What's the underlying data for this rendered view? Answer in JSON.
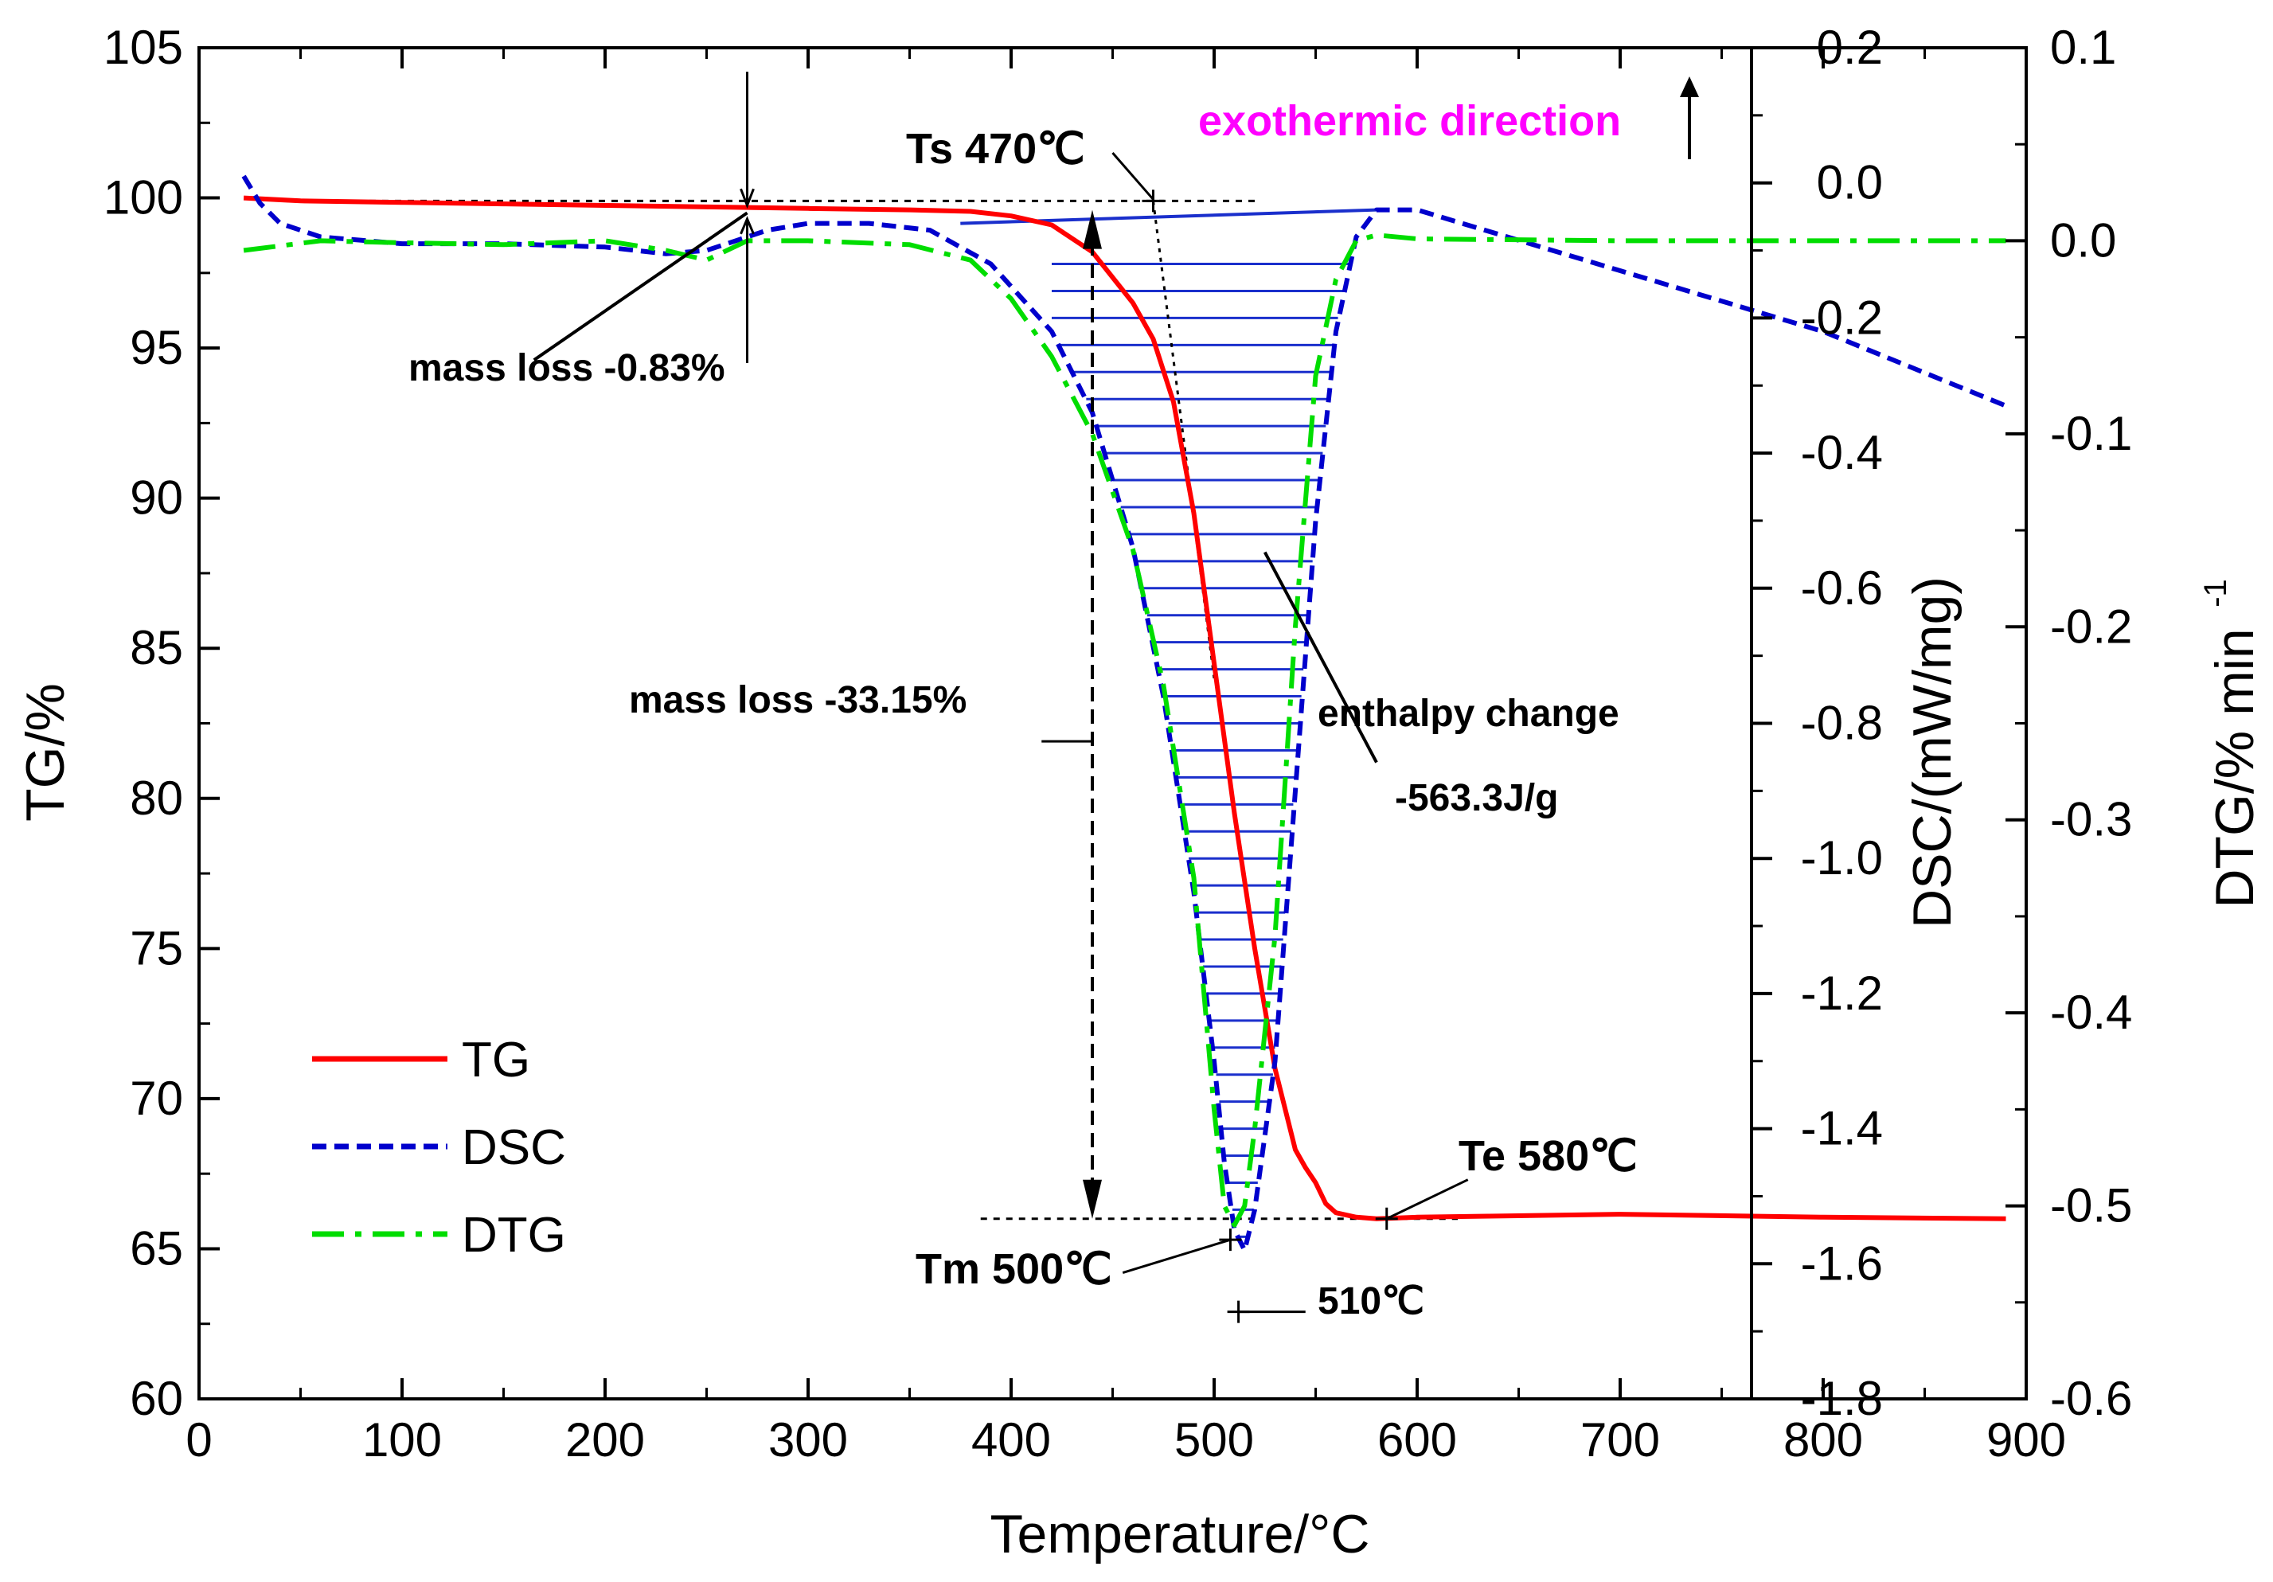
{
  "chart_data": {
    "type": "line",
    "xlabel": "Temperature/°C",
    "ylabel_left": "TG/%",
    "ylabel_right1": "DSC/(mW/mg)",
    "ylabel_right2_main": "DTG/% min",
    "ylabel_right2_sup": "-1",
    "xlim": [
      0,
      900
    ],
    "ylim_tg": [
      60,
      105
    ],
    "ylim_dsc": [
      -1.8,
      0.2
    ],
    "ylim_dtg": [
      -0.6,
      0.1
    ],
    "x_ticks": [
      "0",
      "100",
      "200",
      "300",
      "400",
      "500",
      "600",
      "700",
      "800",
      "900"
    ],
    "tg_ticks": [
      "60",
      "65",
      "70",
      "75",
      "80",
      "85",
      "90",
      "95",
      "100",
      "105"
    ],
    "dsc_ticks": [
      "0.2",
      "0.0",
      "-0.2",
      "-0.4",
      "-0.6",
      "-0.8",
      "-1.0",
      "-1.2",
      "-1.4",
      "-1.6",
      "-1.8"
    ],
    "dtg_ticks": [
      "0.1",
      "0.0",
      "-0.1",
      "-0.2",
      "-0.3",
      "-0.4",
      "-0.5",
      "-0.6"
    ],
    "legend": [
      {
        "name": "TG",
        "color": "#ff0000",
        "style": "solid"
      },
      {
        "name": "DSC",
        "color": "#0000cc",
        "style": "dash"
      },
      {
        "name": "DTG",
        "color": "#00dd00",
        "style": "dashdot"
      }
    ],
    "series": [
      {
        "name": "TG",
        "color": "#ff0000",
        "x": [
          22,
          50,
          100,
          150,
          200,
          250,
          300,
          350,
          380,
          400,
          420,
          440,
          460,
          470,
          480,
          490,
          500,
          510,
          520,
          530,
          540,
          545,
          550,
          555,
          560,
          570,
          580,
          600,
          700,
          800,
          890
        ],
        "y": [
          100,
          99.9,
          99.85,
          99.8,
          99.75,
          99.7,
          99.65,
          99.6,
          99.55,
          99.4,
          99.1,
          98.2,
          96.5,
          95.3,
          93.2,
          89.5,
          84.5,
          79.5,
          75,
          71,
          68.3,
          67.7,
          67.2,
          66.5,
          66.2,
          66.05,
          66,
          66.05,
          66.15,
          66.05,
          66
        ]
      },
      {
        "name": "DSC",
        "color": "#0000cc",
        "x": [
          22,
          30,
          40,
          50,
          60,
          80,
          100,
          150,
          200,
          230,
          250,
          260,
          280,
          300,
          330,
          360,
          390,
          420,
          440,
          460,
          475,
          490,
          500,
          505,
          510,
          515,
          520,
          530,
          540,
          550,
          560,
          570,
          580,
          600,
          700,
          800,
          890
        ],
        "y": [
          0.01,
          -0.03,
          -0.06,
          -0.07,
          -0.08,
          -0.085,
          -0.09,
          -0.09,
          -0.095,
          -0.105,
          -0.1,
          -0.09,
          -0.07,
          -0.06,
          -0.06,
          -0.07,
          -0.12,
          -0.22,
          -0.34,
          -0.54,
          -0.76,
          -1.05,
          -1.3,
          -1.45,
          -1.55,
          -1.58,
          -1.52,
          -1.3,
          -0.9,
          -0.5,
          -0.22,
          -0.08,
          -0.04,
          -0.04,
          -0.13,
          -0.22,
          -0.33
        ]
      },
      {
        "name": "DTG",
        "color": "#00dd00",
        "x": [
          22,
          60,
          100,
          150,
          200,
          230,
          250,
          270,
          300,
          350,
          380,
          400,
          420,
          440,
          460,
          475,
          490,
          500,
          505,
          510,
          515,
          520,
          530,
          540,
          550,
          560,
          570,
          580,
          600,
          700,
          800,
          890
        ],
        "y": [
          -0.005,
          0,
          -0.001,
          -0.002,
          0,
          -0.005,
          -0.01,
          0,
          0,
          -0.002,
          -0.01,
          -0.03,
          -0.06,
          -0.1,
          -0.16,
          -0.23,
          -0.33,
          -0.45,
          -0.5,
          -0.51,
          -0.5,
          -0.46,
          -0.36,
          -0.2,
          -0.07,
          -0.02,
          0,
          0.003,
          0.001,
          0,
          0,
          0
        ]
      }
    ],
    "enthalpy_fill_color": "#1a2fcc",
    "annotations": {
      "exo": "exothermic direction",
      "ts": "Ts 470℃",
      "mass_loss1": "mass loss -0.83%",
      "mass_loss2": "mass loss -33.15%",
      "enthalpy": "enthalpy change",
      "enthalpy_val": "-563.3J/g",
      "te": "Te 580℃",
      "tm": "Tm 500℃",
      "peak": "510℃"
    },
    "exo_color": "#ff00ff"
  }
}
